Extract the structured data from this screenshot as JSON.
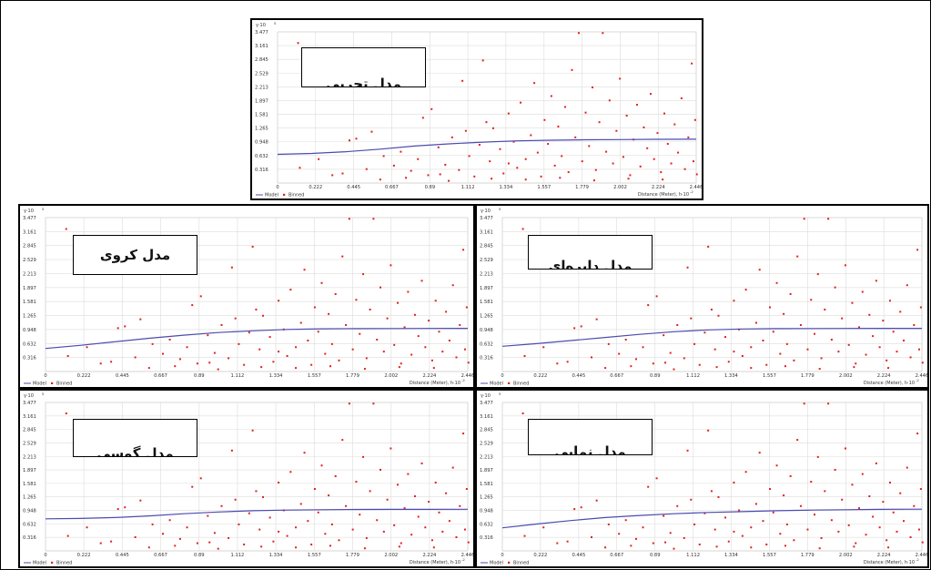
{
  "charts": [
    {
      "id": "p-exp",
      "title": "مدل تجربی",
      "model_curve": [
        [
          0,
          0.66
        ],
        [
          0.2,
          0.68
        ],
        [
          0.4,
          0.72
        ],
        [
          0.6,
          0.78
        ],
        [
          0.8,
          0.85
        ],
        [
          1.0,
          0.9
        ],
        [
          1.2,
          0.94
        ],
        [
          1.4,
          0.97
        ],
        [
          1.6,
          0.985
        ],
        [
          1.8,
          0.995
        ],
        [
          2.0,
          1.0
        ],
        [
          2.2,
          1.005
        ],
        [
          2.446,
          1.008
        ]
      ]
    },
    {
      "id": "p-sph",
      "title": "مدل کروی",
      "model_curve": [
        [
          0,
          0.52
        ],
        [
          0.2,
          0.59
        ],
        [
          0.4,
          0.67
        ],
        [
          0.6,
          0.75
        ],
        [
          0.8,
          0.82
        ],
        [
          1.0,
          0.88
        ],
        [
          1.2,
          0.92
        ],
        [
          1.4,
          0.95
        ],
        [
          1.6,
          0.965
        ],
        [
          1.8,
          0.97
        ],
        [
          2.0,
          0.972
        ],
        [
          2.2,
          0.974
        ],
        [
          2.446,
          0.975
        ]
      ]
    },
    {
      "id": "p-cir",
      "title": "مدل دایره‌ای",
      "model_curve": [
        [
          0,
          0.57
        ],
        [
          0.2,
          0.63
        ],
        [
          0.4,
          0.7
        ],
        [
          0.6,
          0.77
        ],
        [
          0.8,
          0.84
        ],
        [
          1.0,
          0.9
        ],
        [
          1.2,
          0.94
        ],
        [
          1.4,
          0.96
        ],
        [
          1.6,
          0.97
        ],
        [
          1.8,
          0.972
        ],
        [
          2.0,
          0.974
        ],
        [
          2.2,
          0.975
        ],
        [
          2.446,
          0.976
        ]
      ]
    },
    {
      "id": "p-gau",
      "title": "مدل گوسی",
      "model_curve": [
        [
          0,
          0.75
        ],
        [
          0.2,
          0.76
        ],
        [
          0.4,
          0.78
        ],
        [
          0.6,
          0.82
        ],
        [
          0.8,
          0.87
        ],
        [
          1.0,
          0.91
        ],
        [
          1.2,
          0.94
        ],
        [
          1.4,
          0.955
        ],
        [
          1.6,
          0.965
        ],
        [
          1.8,
          0.97
        ],
        [
          2.0,
          0.972
        ],
        [
          2.2,
          0.973
        ],
        [
          2.446,
          0.974
        ]
      ]
    },
    {
      "id": "p-exn",
      "title": "مدل نمایی",
      "model_curve": [
        [
          0,
          0.54
        ],
        [
          0.2,
          0.63
        ],
        [
          0.4,
          0.71
        ],
        [
          0.6,
          0.78
        ],
        [
          0.8,
          0.83
        ],
        [
          1.0,
          0.87
        ],
        [
          1.2,
          0.9
        ],
        [
          1.4,
          0.92
        ],
        [
          1.6,
          0.94
        ],
        [
          1.8,
          0.955
        ],
        [
          2.0,
          0.965
        ],
        [
          2.2,
          0.972
        ],
        [
          2.446,
          0.978
        ]
      ]
    }
  ],
  "chart_data": {
    "type": "scatter",
    "ylabel": "γ·10",
    "ylabel_exponent": "5",
    "xlabel": "Distance (Meter), h·10",
    "xlabel_exponent": "-2",
    "ylim": [
      0,
      3.477
    ],
    "xlim": [
      0,
      2.446
    ],
    "yticks": [
      "0.316",
      "0.632",
      "0.948",
      "1.265",
      "1.581",
      "1.897",
      "2.213",
      "2.529",
      "2.845",
      "3.161",
      "3.477"
    ],
    "xticks": [
      "0",
      "0.222",
      "0.445",
      "0.667",
      "0.89",
      "1.112",
      "1.334",
      "1.557",
      "1.779",
      "2.002",
      "2.224",
      "2.446"
    ],
    "grid": true,
    "legend": [
      "Model",
      "Binned"
    ],
    "legend_position": "bottom-left",
    "series": [
      {
        "name": "Binned",
        "color": "#e02020",
        "points": [
          [
            0.12,
            3.22
          ],
          [
            0.13,
            0.35
          ],
          [
            0.24,
            0.55
          ],
          [
            0.32,
            0.18
          ],
          [
            0.38,
            0.22
          ],
          [
            0.42,
            0.98
          ],
          [
            0.46,
            1.02
          ],
          [
            0.52,
            0.32
          ],
          [
            0.55,
            1.18
          ],
          [
            0.6,
            0.08
          ],
          [
            0.62,
            0.62
          ],
          [
            0.68,
            0.4
          ],
          [
            0.7,
            2.85
          ],
          [
            0.72,
            0.72
          ],
          [
            0.78,
            0.28
          ],
          [
            0.82,
            0.55
          ],
          [
            0.85,
            1.5
          ],
          [
            0.88,
            0.18
          ],
          [
            0.9,
            1.7
          ],
          [
            0.94,
            0.82
          ],
          [
            0.98,
            0.42
          ],
          [
            1.02,
            1.05
          ],
          [
            1.06,
            0.3
          ],
          [
            1.08,
            2.35
          ],
          [
            1.1,
            1.2
          ],
          [
            1.12,
            0.62
          ],
          [
            1.15,
            0.15
          ],
          [
            1.18,
            0.88
          ],
          [
            1.2,
            2.82
          ],
          [
            1.22,
            1.4
          ],
          [
            1.24,
            0.5
          ],
          [
            1.26,
            1.26
          ],
          [
            1.3,
            0.78
          ],
          [
            1.32,
            0.22
          ],
          [
            1.35,
            1.6
          ],
          [
            1.38,
            0.95
          ],
          [
            1.4,
            0.35
          ],
          [
            1.42,
            1.85
          ],
          [
            1.45,
            0.55
          ],
          [
            1.48,
            1.1
          ],
          [
            1.5,
            2.3
          ],
          [
            1.52,
            0.7
          ],
          [
            1.54,
            0.15
          ],
          [
            1.56,
            1.45
          ],
          [
            1.58,
            0.9
          ],
          [
            1.6,
            2.0
          ],
          [
            1.62,
            0.4
          ],
          [
            1.64,
            1.3
          ],
          [
            1.66,
            0.62
          ],
          [
            1.68,
            1.75
          ],
          [
            1.7,
            0.25
          ],
          [
            1.72,
            2.6
          ],
          [
            1.74,
            1.05
          ],
          [
            1.76,
            3.45
          ],
          [
            1.78,
            0.5
          ],
          [
            1.8,
            1.62
          ],
          [
            1.82,
            0.85
          ],
          [
            1.84,
            2.2
          ],
          [
            1.86,
            0.3
          ],
          [
            1.88,
            1.4
          ],
          [
            1.9,
            3.45
          ],
          [
            1.92,
            0.72
          ],
          [
            1.94,
            1.9
          ],
          [
            1.96,
            0.45
          ],
          [
            1.98,
            1.2
          ],
          [
            2.0,
            2.4
          ],
          [
            2.02,
            0.6
          ],
          [
            2.04,
            1.55
          ],
          [
            2.06,
            0.18
          ],
          [
            2.08,
            1.0
          ],
          [
            2.1,
            1.8
          ],
          [
            2.12,
            0.38
          ],
          [
            2.14,
            1.28
          ],
          [
            2.16,
            0.8
          ],
          [
            2.18,
            2.05
          ],
          [
            2.2,
            0.55
          ],
          [
            2.22,
            1.15
          ],
          [
            2.24,
            0.25
          ],
          [
            2.26,
            1.6
          ],
          [
            2.28,
            0.9
          ],
          [
            2.3,
            0.45
          ],
          [
            2.32,
            1.35
          ],
          [
            2.34,
            0.7
          ],
          [
            2.36,
            1.95
          ],
          [
            2.38,
            0.32
          ],
          [
            2.4,
            1.05
          ],
          [
            2.42,
            2.75
          ],
          [
            2.43,
            0.5
          ],
          [
            2.44,
            1.45
          ],
          [
            2.45,
            0.2
          ],
          [
            1.0,
            0.05
          ],
          [
            1.25,
            0.1
          ],
          [
            1.45,
            0.08
          ],
          [
            1.65,
            0.12
          ],
          [
            1.85,
            0.06
          ],
          [
            2.05,
            0.1
          ],
          [
            2.25,
            0.08
          ],
          [
            0.75,
            0.12
          ],
          [
            0.95,
            0.2
          ],
          [
            1.35,
            0.45
          ]
        ]
      },
      {
        "name": "Model",
        "color": "#4b4bb0"
      }
    ]
  }
}
